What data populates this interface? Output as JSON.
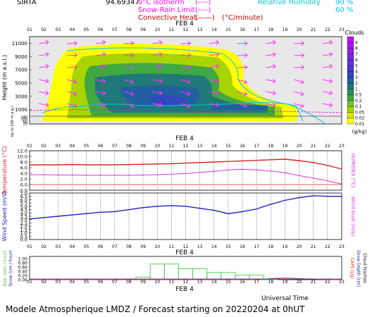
{
  "header": {
    "station": "SIRTA",
    "coords": "94.69347",
    "legend": [
      {
        "label": "0°C isotherm",
        "marker": "(----)",
        "color": "#ff00ff"
      },
      {
        "label": "Snow-Rain Limit",
        "marker": "(----)",
        "color": "#ff00ff"
      },
      {
        "label": "Convective Heat.",
        "marker": "(——)",
        "unit": "(°C/minute)",
        "color": "#cc0000"
      }
    ],
    "rh_label": "Relative Humidity",
    "rh_levels": [
      "90 %",
      "60 %"
    ],
    "rh_color": "#00c8e0"
  },
  "hours": [
    "01",
    "02",
    "03",
    "04",
    "05",
    "06",
    "07",
    "08",
    "09",
    "10",
    "11",
    "12",
    "13",
    "14",
    "15",
    "16",
    "17",
    "18",
    "19",
    "20",
    "21",
    "22",
    "23"
  ],
  "date_label": "FEB  4",
  "footer": {
    "utc_label": "Universal Time",
    "title": "Modele Atmospherique LMDZ / Forecast starting on 20220204 at 0hUT"
  },
  "chart_data": [
    {
      "type": "heatmap",
      "name": "clouds",
      "ylabel": "Height (m a.s.l.)",
      "ylabel2": "Up to 200 m a.g.l.",
      "yticks_upper": [
        1000,
        3000,
        5000,
        7000,
        9000,
        11000
      ],
      "yticks_lower": [
        140,
        120,
        100,
        80,
        60,
        40,
        20
      ],
      "colorbar": {
        "title": "Clouds",
        "unit": "(g/kg)",
        "levels": [
          "0.01",
          "0.02",
          "0.05",
          "0.1",
          "0.2",
          "0.5",
          "1",
          "2",
          "3",
          "4",
          "5",
          "6",
          "7",
          "8",
          "9"
        ],
        "colors": [
          "#ffff00",
          "#d8e800",
          "#a8d400",
          "#70c030",
          "#40a840",
          "#289060",
          "#207878",
          "#2060a0",
          "#3048c0",
          "#4838d0",
          "#6030d8",
          "#7828e0",
          "#9020e8",
          "#a818f0",
          "#c010f8"
        ]
      }
    },
    {
      "type": "line",
      "name": "temperature",
      "ylabel": "Temperature (°C)",
      "ylabel2": "HUMIDEX (°C)",
      "yticks": [
        "-2.0",
        "0.0",
        "2.0",
        "4.0",
        "6.0",
        "8.0",
        "10.0",
        "12.0"
      ],
      "ylim": [
        -2,
        12
      ],
      "series": [
        {
          "color": "#dd2222",
          "values": [
            7.0,
            7.0,
            7.0,
            7.1,
            7.0,
            7.0,
            7.0,
            7.1,
            7.2,
            7.3,
            7.4,
            7.6,
            7.8,
            8.0,
            8.2,
            8.4,
            8.6,
            8.8,
            9.0,
            8.5,
            7.8,
            6.8,
            5.5
          ]
        },
        {
          "color": "#dd33dd",
          "values": [
            3.5,
            3.5,
            3.4,
            3.4,
            3.3,
            3.3,
            3.3,
            3.3,
            3.4,
            3.5,
            3.7,
            3.9,
            4.3,
            4.7,
            5.2,
            5.4,
            5.2,
            4.8,
            4.2,
            3.2,
            2.3,
            1.3,
            0.2
          ]
        }
      ]
    },
    {
      "type": "line",
      "name": "wind",
      "ylabel": "Wind Speed (m/s)",
      "ylabel2": "Wind Gust (m/s)",
      "yticks": [
        "0.0",
        "0.5",
        "1.0",
        "1.5",
        "2.0",
        "2.5",
        "3.0",
        "3.5",
        "4.0",
        "4.5",
        "5.0",
        "5.5",
        "6.0",
        "6.5",
        "7.0"
      ],
      "ylim": [
        0,
        7
      ],
      "series": [
        {
          "color": "#2222bb",
          "values": [
            3.1,
            3.3,
            3.5,
            3.7,
            3.9,
            4.1,
            4.2,
            4.5,
            4.8,
            5.0,
            5.1,
            5.0,
            4.7,
            4.4,
            3.9,
            4.2,
            4.6,
            5.3,
            5.9,
            6.3,
            6.6,
            6.5,
            6.5
          ]
        }
      ]
    },
    {
      "type": "bar",
      "name": "precipitation",
      "ylabel": "Rain (mm / hour)",
      "ylabel_snow": "Snow (cm / hour)",
      "ylabel2": "CAPE (J/g)",
      "ylabel3": "Snow Depth (cm)",
      "ylabel4": "Cloud Fraction",
      "yticks": [
        "0.00",
        "0.20",
        "0.40",
        "0.60",
        "0.80",
        "1.00"
      ],
      "ylim": [
        0,
        1.1
      ],
      "rain": [
        0,
        0,
        0,
        0,
        0,
        0,
        0,
        0.02,
        0.12,
        0.74,
        0.74,
        0.52,
        0.52,
        0.34,
        0.34,
        0.22,
        0.22,
        0.02,
        0,
        0,
        0,
        0,
        0
      ],
      "cape": [
        0,
        0,
        0,
        0,
        0,
        0,
        0,
        0,
        0,
        0,
        0,
        0,
        0,
        0,
        0,
        0,
        0,
        0.05,
        0.08,
        0.05,
        0.02,
        0,
        0
      ]
    }
  ]
}
